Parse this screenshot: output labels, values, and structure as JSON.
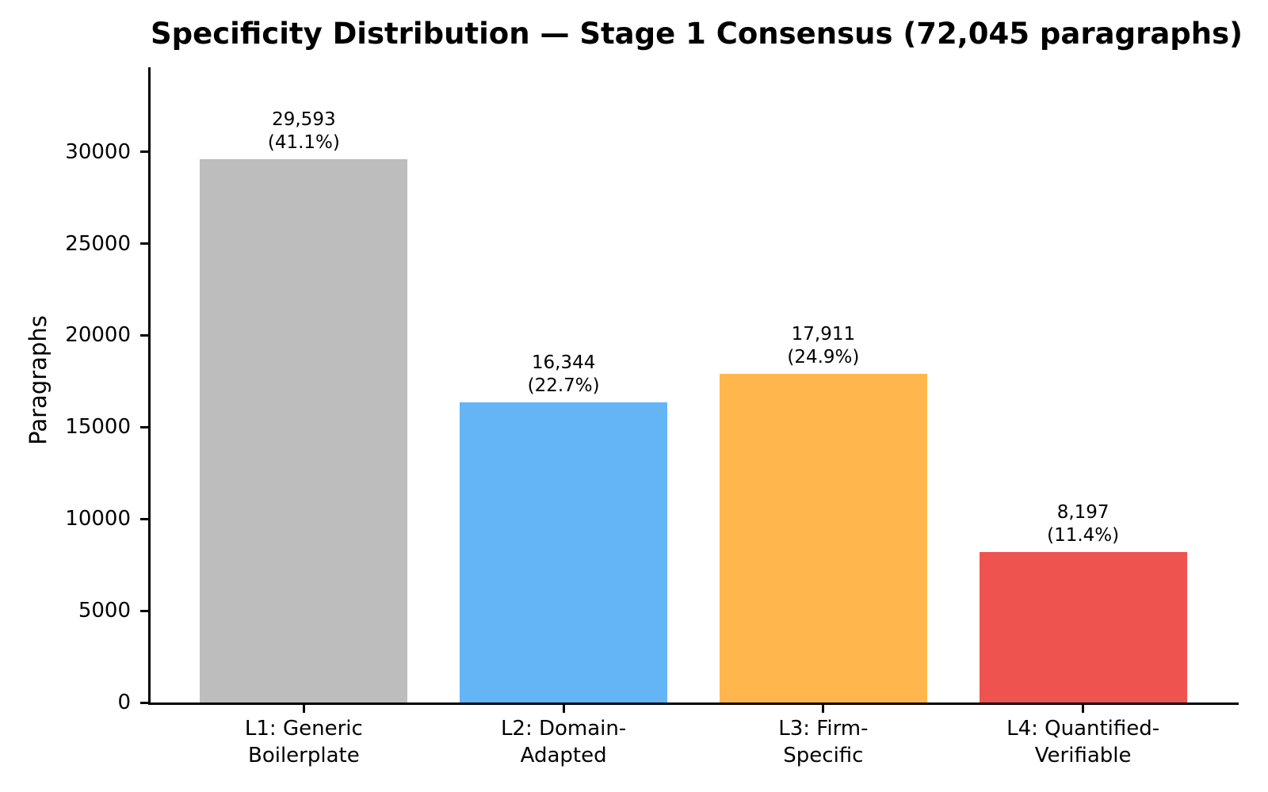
{
  "chart_data": {
    "type": "bar",
    "title": "Specificity Distribution — Stage 1 Consensus (72,045 paragraphs)",
    "xlabel": "",
    "ylabel": "Paragraphs",
    "total_label": "72,045 paragraphs",
    "categories": [
      "L1: Generic Boilerplate",
      "L2: Domain-Adapted",
      "L3: Firm-Specific",
      "L4: Quantified-Verifiable"
    ],
    "category_lines": [
      [
        "L1: Generic",
        "Boilerplate"
      ],
      [
        "L2: Domain-",
        "Adapted"
      ],
      [
        "L3: Firm-",
        "Specific"
      ],
      [
        "L4: Quantified-",
        "Verifiable"
      ]
    ],
    "values": [
      29593,
      16344,
      17911,
      8197
    ],
    "value_labels": [
      "29,593",
      "16,344",
      "17,911",
      "8,197"
    ],
    "pct_labels": [
      "(41.1%)",
      "(22.7%)",
      "(24.9%)",
      "(11.4%)"
    ],
    "percentages": [
      41.1,
      22.7,
      24.9,
      11.4
    ],
    "colors": [
      "#bdbdbd",
      "#64b5f6",
      "#ffb74d",
      "#ef5350"
    ],
    "yticks": [
      0,
      5000,
      10000,
      15000,
      20000,
      25000,
      30000
    ],
    "ytick_labels": [
      "0",
      "5000",
      "10000",
      "15000",
      "20000",
      "25000",
      "30000"
    ],
    "ylim": [
      0,
      34600
    ],
    "grid": false,
    "legend": null,
    "background_color": "#ffffff",
    "text_color": "#000000"
  }
}
